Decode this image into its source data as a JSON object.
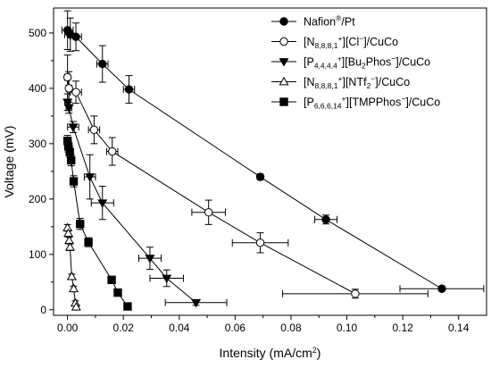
{
  "chart_data": {
    "type": "scatter",
    "title": "",
    "xlabel": "Intensity (mA/cm²)",
    "xlabel_base": "Intensity (mA/cm",
    "xlabel_sup": "2",
    "xlabel_end": ")",
    "ylabel": "Voltage (mV)",
    "xlim": [
      -0.005,
      0.15
    ],
    "ylim": [
      -10,
      545
    ],
    "xticks": [
      "0.00",
      "0.02",
      "0.04",
      "0.06",
      "0.08",
      "0.10",
      "0.12",
      "0.14"
    ],
    "xtick_values": [
      0,
      0.02,
      0.04,
      0.06,
      0.08,
      0.1,
      0.12,
      0.14
    ],
    "yticks": [
      "0",
      "100",
      "200",
      "300",
      "400",
      "500"
    ],
    "ytick_values": [
      0,
      100,
      200,
      300,
      400,
      500
    ],
    "grid": false,
    "legend_position": "top-right",
    "series": [
      {
        "name": "Nafion®/Pt",
        "legend": [
          {
            "t": "Nafion"
          },
          {
            "t": "®",
            "sup": true
          },
          {
            "t": "/Pt"
          }
        ],
        "marker": "circle",
        "filled": true,
        "points": [
          {
            "x": 0.0,
            "y": 505,
            "xerr": 0.002,
            "yerr": 35
          },
          {
            "x": 0.001,
            "y": 497,
            "xerr": 0.002,
            "yerr": 30
          },
          {
            "x": 0.003,
            "y": 493,
            "xerr": 0.002,
            "yerr": 25
          },
          {
            "x": 0.0125,
            "y": 444,
            "xerr": 0.002,
            "yerr": 33
          },
          {
            "x": 0.022,
            "y": 398,
            "xerr": 0.002,
            "yerr": 25
          },
          {
            "x": 0.069,
            "y": 240,
            "xerr": 0.001,
            "yerr": 3
          },
          {
            "x": 0.0925,
            "y": 163,
            "xerr": 0.004,
            "yerr": 8
          },
          {
            "x": 0.134,
            "y": 38,
            "xerr": 0.015,
            "yerr": 3
          }
        ]
      },
      {
        "name": "[N8,8,8,1+][Cl−]/CuCo",
        "legend": [
          {
            "t": "[N"
          },
          {
            "t": "8,8,8,1",
            "sub": true
          },
          {
            "t": "+",
            "sup": true
          },
          {
            "t": "][Cl"
          },
          {
            "t": "−",
            "sup": true
          },
          {
            "t": "]/CuCo"
          }
        ],
        "marker": "circle",
        "filled": false,
        "points": [
          {
            "x": 0.0,
            "y": 420,
            "xerr": 0.001,
            "yerr": 40
          },
          {
            "x": 0.0005,
            "y": 400,
            "xerr": 0.001,
            "yerr": 30
          },
          {
            "x": 0.003,
            "y": 393,
            "xerr": 0.002,
            "yerr": 20
          },
          {
            "x": 0.0095,
            "y": 325,
            "xerr": 0.002,
            "yerr": 25
          },
          {
            "x": 0.016,
            "y": 286,
            "xerr": 0.002,
            "yerr": 25
          },
          {
            "x": 0.0505,
            "y": 176,
            "xerr": 0.006,
            "yerr": 22
          },
          {
            "x": 0.069,
            "y": 121,
            "xerr": 0.01,
            "yerr": 18
          },
          {
            "x": 0.103,
            "y": 29,
            "xerr": 0.026,
            "yerr": 8
          }
        ]
      },
      {
        "name": "[P4,4,4,4+][Bu2Phos−]/CuCo",
        "legend": [
          {
            "t": "[P"
          },
          {
            "t": "4,4,4,4",
            "sub": true
          },
          {
            "t": "+",
            "sup": true
          },
          {
            "t": "][Bu"
          },
          {
            "t": "2",
            "sub": true
          },
          {
            "t": "Phos"
          },
          {
            "t": "−",
            "sup": true
          },
          {
            "t": "]/CuCo"
          }
        ],
        "marker": "triangle-down",
        "filled": true,
        "points": [
          {
            "x": 0.0,
            "y": 375,
            "xerr": 0.001,
            "yerr": 15
          },
          {
            "x": 0.0005,
            "y": 365,
            "xerr": 0.001,
            "yerr": 10
          },
          {
            "x": 0.002,
            "y": 330,
            "xerr": 0.002,
            "yerr": 10
          },
          {
            "x": 0.008,
            "y": 240,
            "xerr": 0.002,
            "yerr": 40
          },
          {
            "x": 0.0125,
            "y": 193,
            "xerr": 0.004,
            "yerr": 30
          },
          {
            "x": 0.0295,
            "y": 93,
            "xerr": 0.004,
            "yerr": 20
          },
          {
            "x": 0.0355,
            "y": 57,
            "xerr": 0.006,
            "yerr": 15
          },
          {
            "x": 0.046,
            "y": 13,
            "xerr": 0.011,
            "yerr": 5
          }
        ]
      },
      {
        "name": "[N8,8,8,1+][NTf2−]/CuCo",
        "legend": [
          {
            "t": "[N"
          },
          {
            "t": "8,8,8,1",
            "sub": true
          },
          {
            "t": "+",
            "sup": true
          },
          {
            "t": "][NTf"
          },
          {
            "t": "2",
            "sub": true
          },
          {
            "t": "−",
            "sup": true
          },
          {
            "t": "]/CuCo"
          }
        ],
        "marker": "triangle-up",
        "filled": false,
        "points": [
          {
            "x": 0.0,
            "y": 148,
            "xerr": 0.0005,
            "yerr": 6
          },
          {
            "x": 0.0003,
            "y": 138,
            "xerr": 0.0005,
            "yerr": 6
          },
          {
            "x": 0.0006,
            "y": 125,
            "xerr": 0.0005,
            "yerr": 6
          },
          {
            "x": 0.0009,
            "y": 113,
            "xerr": 0.0005,
            "yerr": 6
          },
          {
            "x": 0.0015,
            "y": 60,
            "xerr": 0.0005,
            "yerr": 4
          },
          {
            "x": 0.0022,
            "y": 38,
            "xerr": 0.0005,
            "yerr": 4
          },
          {
            "x": 0.0028,
            "y": 12,
            "xerr": 0.0005,
            "yerr": 4
          },
          {
            "x": 0.0031,
            "y": 5,
            "xerr": 0.0005,
            "yerr": 4
          }
        ]
      },
      {
        "name": "[P6,6,6,14+][TMPPhos−]/CuCo",
        "legend": [
          {
            "t": "[P"
          },
          {
            "t": "6,6,6,14",
            "sub": true
          },
          {
            "t": "+",
            "sup": true
          },
          {
            "t": "][TMPPhos"
          },
          {
            "t": "−",
            "sup": true
          },
          {
            "t": "]/CuCo"
          }
        ],
        "marker": "square",
        "filled": true,
        "points": [
          {
            "x": 0.0,
            "y": 305,
            "xerr": 0.0007,
            "yerr": 10
          },
          {
            "x": 0.0003,
            "y": 295,
            "xerr": 0.0007,
            "yerr": 10
          },
          {
            "x": 0.0008,
            "y": 285,
            "xerr": 0.0007,
            "yerr": 10
          },
          {
            "x": 0.0013,
            "y": 270,
            "xerr": 0.0007,
            "yerr": 10
          },
          {
            "x": 0.0022,
            "y": 232,
            "xerr": 0.0007,
            "yerr": 10
          },
          {
            "x": 0.0045,
            "y": 155,
            "xerr": 0.001,
            "yerr": 10
          },
          {
            "x": 0.0075,
            "y": 122,
            "xerr": 0.001,
            "yerr": 8
          },
          {
            "x": 0.0158,
            "y": 54,
            "xerr": 0.001,
            "yerr": 6
          },
          {
            "x": 0.018,
            "y": 31,
            "xerr": 0.001,
            "yerr": 5
          },
          {
            "x": 0.0215,
            "y": 6,
            "xerr": 0.001,
            "yerr": 4
          }
        ]
      }
    ]
  }
}
